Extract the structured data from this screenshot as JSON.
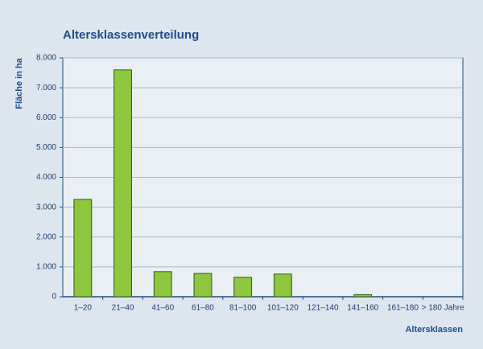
{
  "chart_data": {
    "type": "bar",
    "title": "Altersklassenverteilung",
    "y_label": "Fläche in ha",
    "x_label": "Altersklassen",
    "categories": [
      "1–20",
      "21–40",
      "41–60",
      "61–80",
      "81–100",
      "101–120",
      "121–140",
      "141–160",
      "161–180",
      "> 180 Jahre"
    ],
    "values": [
      3260,
      7600,
      840,
      780,
      650,
      760,
      0,
      70,
      0,
      0
    ],
    "color": "#8dc63f",
    "ylim": [
      0,
      8000
    ],
    "yticks": [
      0,
      {
        "value": 1000,
        "label": "1.000"
      },
      {
        "value": 2000,
        "label": "2.000"
      },
      {
        "value": 3000,
        "label": "3.000"
      },
      {
        "value": 4000,
        "label": "4.000"
      },
      {
        "value": 5000,
        "label": "5.000"
      },
      {
        "value": 6000,
        "label": "6.000"
      },
      {
        "value": 7000,
        "label": "7.000"
      },
      {
        "value": 8000,
        "label": "8.000"
      }
    ],
    "grid": true
  }
}
